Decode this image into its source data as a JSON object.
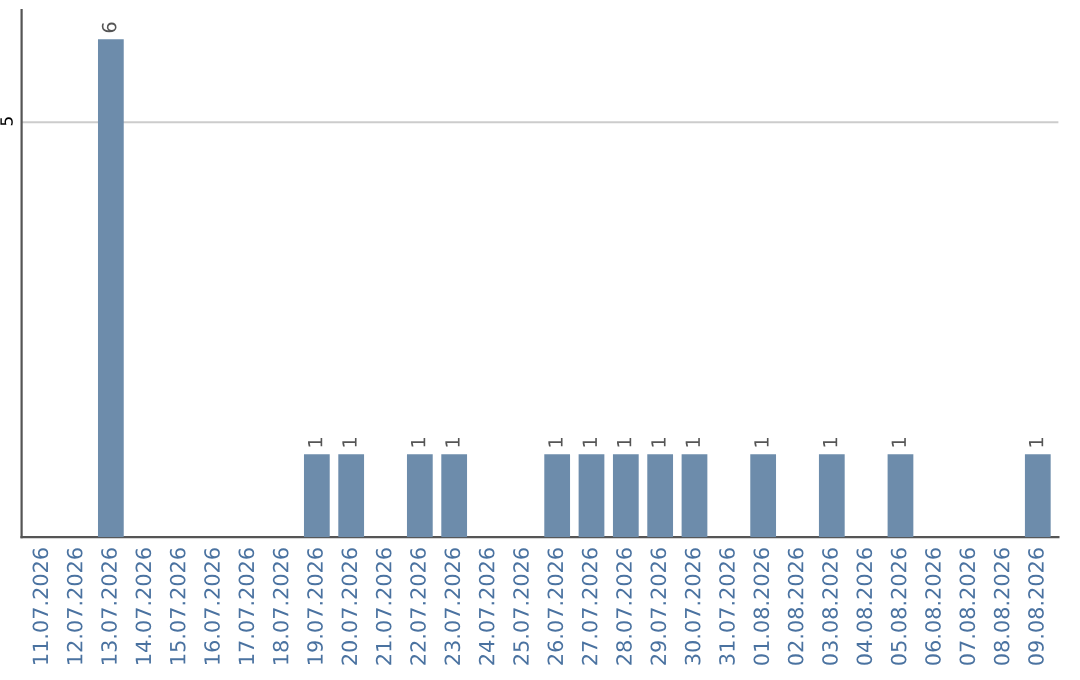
{
  "chart_data": {
    "type": "bar",
    "categories": [
      "11.07.2026",
      "12.07.2026",
      "13.07.2026",
      "14.07.2026",
      "15.07.2026",
      "16.07.2026",
      "17.07.2026",
      "18.07.2026",
      "19.07.2026",
      "20.07.2026",
      "21.07.2026",
      "22.07.2026",
      "23.07.2026",
      "24.07.2026",
      "25.07.2026",
      "26.07.2026",
      "27.07.2026",
      "28.07.2026",
      "29.07.2026",
      "30.07.2026",
      "31.07.2026",
      "01.08.2026",
      "02.08.2026",
      "03.08.2026",
      "04.08.2026",
      "05.08.2026",
      "06.08.2026",
      "07.08.2026",
      "08.08.2026",
      "09.08.2026"
    ],
    "values": [
      0,
      0,
      6,
      0,
      0,
      0,
      0,
      0,
      1,
      1,
      0,
      1,
      1,
      0,
      0,
      1,
      1,
      1,
      1,
      1,
      0,
      1,
      0,
      1,
      0,
      1,
      0,
      0,
      0,
      1
    ],
    "value_labels": [
      null,
      null,
      "6",
      null,
      null,
      null,
      null,
      null,
      "1",
      "1",
      null,
      "1",
      "1",
      null,
      null,
      "1",
      "1",
      "1",
      "1",
      "1",
      null,
      "1",
      null,
      "1",
      null,
      "1",
      null,
      null,
      null,
      "1"
    ],
    "color": "#6d8cab",
    "ylim": [
      0,
      6.35
    ],
    "yticks": [
      5
    ],
    "grid": "y"
  }
}
